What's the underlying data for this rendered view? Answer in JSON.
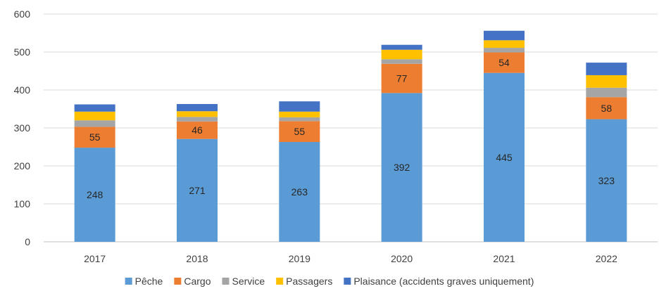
{
  "chart_data": {
    "type": "bar",
    "stacked": true,
    "categories": [
      "2017",
      "2018",
      "2019",
      "2020",
      "2021",
      "2022"
    ],
    "ylim": [
      0,
      600
    ],
    "yticks": [
      0,
      100,
      200,
      300,
      400,
      500,
      600
    ],
    "grid": true,
    "legend_position": "bottom",
    "series": [
      {
        "name": "Pêche",
        "color": "#5b9bd5",
        "values": [
          248,
          271,
          263,
          392,
          445,
          323
        ],
        "labels": [
          "248",
          "271",
          "263",
          "392",
          "445",
          "323"
        ]
      },
      {
        "name": "Cargo",
        "color": "#ed7d31",
        "values": [
          55,
          46,
          55,
          77,
          54,
          58
        ],
        "labels": [
          "55",
          "46",
          "55",
          "77",
          "54",
          "58"
        ]
      },
      {
        "name": "Service",
        "color": "#a5a5a5",
        "values": [
          17,
          12,
          10,
          12,
          12,
          25
        ],
        "labels": []
      },
      {
        "name": "Passagers",
        "color": "#ffc000",
        "values": [
          23,
          15,
          15,
          25,
          20,
          33
        ],
        "labels": []
      },
      {
        "name": "Plaisance (accidents graves uniquement)",
        "color": "#4472c4",
        "values": [
          19,
          19,
          27,
          13,
          25,
          33
        ],
        "labels": []
      }
    ]
  }
}
